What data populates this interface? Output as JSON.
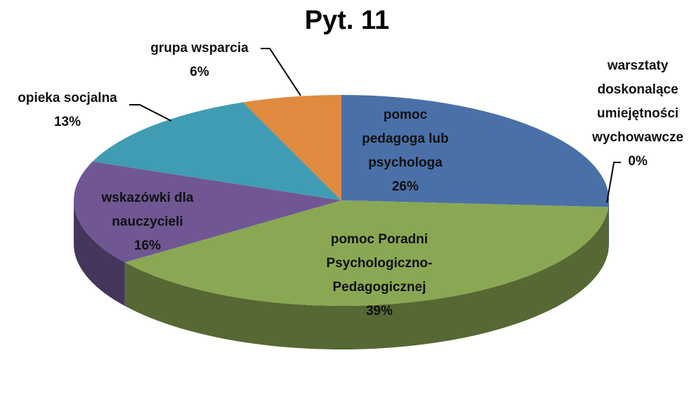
{
  "chart_data": {
    "type": "pie",
    "title": "Pyt. 11",
    "categories": [
      "pomoc pedagoga lub psychologa",
      "warsztaty doskonalące umiejętności wychowawcze",
      "pomoc Poradni Psychologiczno-Pedagogicznej",
      "wskazówki dla nauczycieli",
      "opieka socjalna",
      "grupa wsparcia"
    ],
    "values": [
      26,
      0,
      39,
      16,
      13,
      6
    ],
    "value_labels": [
      "26%",
      "0%",
      "39%",
      "16%",
      "13%",
      "6%"
    ],
    "colors": [
      "#4a70a8",
      "#b94a48",
      "#8aa853",
      "#705793",
      "#3f9cb2",
      "#e08a3f"
    ]
  }
}
